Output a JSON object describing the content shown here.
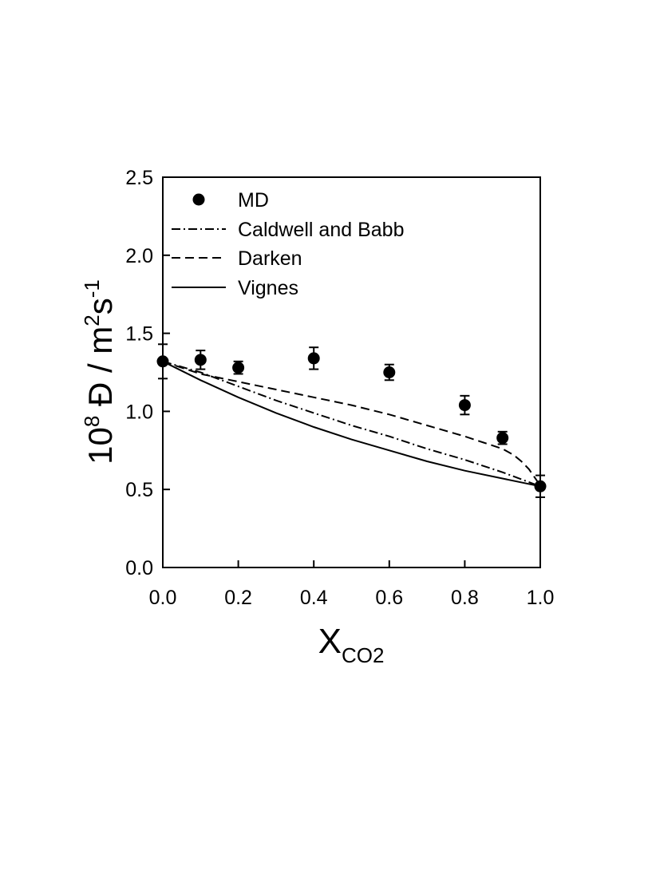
{
  "chart_data": {
    "type": "scatter",
    "title": "",
    "xlabel": "X",
    "xlabel_subscript": "CO2",
    "ylabel_prefix": "10",
    "ylabel_exp": "8",
    "ylabel_main": " Đ / m",
    "ylabel_exp2": "2",
    "ylabel_s": "s",
    "ylabel_exp3": "-1",
    "xlim": [
      0.0,
      1.0
    ],
    "ylim": [
      0.0,
      2.5
    ],
    "xticks": [
      0.0,
      0.2,
      0.4,
      0.6,
      0.8,
      1.0
    ],
    "xtick_labels": [
      "0.0",
      "0.2",
      "0.4",
      "0.6",
      "0.8",
      "1.0"
    ],
    "yticks": [
      0.0,
      0.5,
      1.0,
      1.5,
      2.0,
      2.5
    ],
    "ytick_labels": [
      "0.0",
      "0.5",
      "1.0",
      "1.5",
      "2.0",
      "2.5"
    ],
    "grid": false,
    "legend_position": "top-left",
    "series": [
      {
        "name": "MD",
        "style": "markers",
        "x": [
          0.0,
          0.1,
          0.2,
          0.4,
          0.6,
          0.8,
          0.9,
          1.0
        ],
        "y": [
          1.32,
          1.33,
          1.28,
          1.34,
          1.25,
          1.04,
          0.83,
          0.52
        ],
        "err": [
          0.11,
          0.06,
          0.04,
          0.07,
          0.05,
          0.06,
          0.04,
          0.07
        ]
      },
      {
        "name": "Caldwell and Babb",
        "style": "dash-dot",
        "x": [
          0.0,
          0.1,
          0.2,
          0.3,
          0.4,
          0.5,
          0.6,
          0.7,
          0.8,
          0.9,
          1.0
        ],
        "y": [
          1.32,
          1.25,
          1.16,
          1.07,
          0.99,
          0.91,
          0.84,
          0.76,
          0.69,
          0.61,
          0.52
        ]
      },
      {
        "name": "Darken",
        "style": "dashed",
        "x": [
          0.0,
          0.1,
          0.2,
          0.3,
          0.4,
          0.5,
          0.6,
          0.7,
          0.8,
          0.85,
          0.9,
          0.93,
          0.95,
          0.97,
          0.99,
          1.0
        ],
        "y": [
          1.32,
          1.24,
          1.19,
          1.14,
          1.09,
          1.04,
          0.98,
          0.91,
          0.84,
          0.8,
          0.76,
          0.72,
          0.68,
          0.63,
          0.56,
          0.52
        ]
      },
      {
        "name": "Vignes",
        "style": "solid",
        "x": [
          0.0,
          0.1,
          0.2,
          0.3,
          0.4,
          0.5,
          0.6,
          0.7,
          0.8,
          0.9,
          1.0
        ],
        "y": [
          1.32,
          1.2,
          1.09,
          0.99,
          0.9,
          0.82,
          0.75,
          0.68,
          0.62,
          0.57,
          0.52
        ]
      }
    ]
  }
}
